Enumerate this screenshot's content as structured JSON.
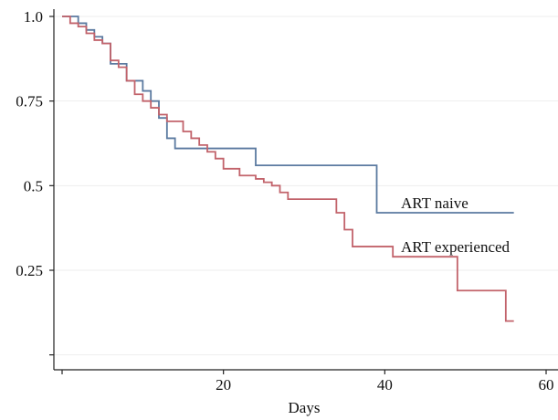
{
  "chart_data": {
    "type": "line",
    "step": true,
    "title": "",
    "xlabel": "Days",
    "ylabel": "",
    "xlim": [
      -1,
      61
    ],
    "ylim": [
      -0.05,
      1.01
    ],
    "x_ticks": [
      {
        "value": 0,
        "label": ""
      },
      {
        "value": 20,
        "label": "20"
      },
      {
        "value": 40,
        "label": "40"
      },
      {
        "value": 60,
        "label": "60"
      }
    ],
    "y_ticks": [
      {
        "value": 0,
        "label": ""
      },
      {
        "value": 0.25,
        "label": "0.25"
      },
      {
        "value": 0.5,
        "label": "0.5"
      },
      {
        "value": 0.75,
        "label": "0.75"
      },
      {
        "value": 1.0,
        "label": "1.0"
      }
    ],
    "grid": "horizontal",
    "series": [
      {
        "name": "ART naive",
        "color": "#5b7aa0",
        "points": [
          [
            0,
            1.0
          ],
          [
            2,
            0.98
          ],
          [
            3,
            0.96
          ],
          [
            4,
            0.94
          ],
          [
            5,
            0.92
          ],
          [
            6,
            0.86
          ],
          [
            7,
            0.86
          ],
          [
            8,
            0.81
          ],
          [
            10,
            0.78
          ],
          [
            11,
            0.75
          ],
          [
            12,
            0.7
          ],
          [
            13,
            0.64
          ],
          [
            14,
            0.61
          ],
          [
            24,
            0.56
          ],
          [
            39,
            0.42
          ],
          [
            56,
            0.42
          ]
        ]
      },
      {
        "name": "ART experienced",
        "color": "#c2636b",
        "points": [
          [
            0,
            1.0
          ],
          [
            1,
            0.98
          ],
          [
            2,
            0.97
          ],
          [
            3,
            0.95
          ],
          [
            4,
            0.93
          ],
          [
            5,
            0.92
          ],
          [
            6,
            0.87
          ],
          [
            7,
            0.85
          ],
          [
            8,
            0.81
          ],
          [
            9,
            0.77
          ],
          [
            10,
            0.75
          ],
          [
            11,
            0.73
          ],
          [
            12,
            0.71
          ],
          [
            13,
            0.69
          ],
          [
            15,
            0.66
          ],
          [
            16,
            0.64
          ],
          [
            17,
            0.62
          ],
          [
            18,
            0.6
          ],
          [
            19,
            0.58
          ],
          [
            20,
            0.55
          ],
          [
            22,
            0.53
          ],
          [
            24,
            0.52
          ],
          [
            25,
            0.51
          ],
          [
            26,
            0.5
          ],
          [
            27,
            0.48
          ],
          [
            28,
            0.46
          ],
          [
            34,
            0.42
          ],
          [
            35,
            0.37
          ],
          [
            36,
            0.32
          ],
          [
            41,
            0.29
          ],
          [
            49,
            0.19
          ],
          [
            55,
            0.1
          ],
          [
            56,
            0.1
          ]
        ]
      }
    ],
    "annotations": [
      {
        "text": "ART naive",
        "x": 42,
        "y": 0.45,
        "series": 0
      },
      {
        "text": "ART experienced",
        "x": 42,
        "y": 0.32,
        "series": 1
      }
    ]
  }
}
